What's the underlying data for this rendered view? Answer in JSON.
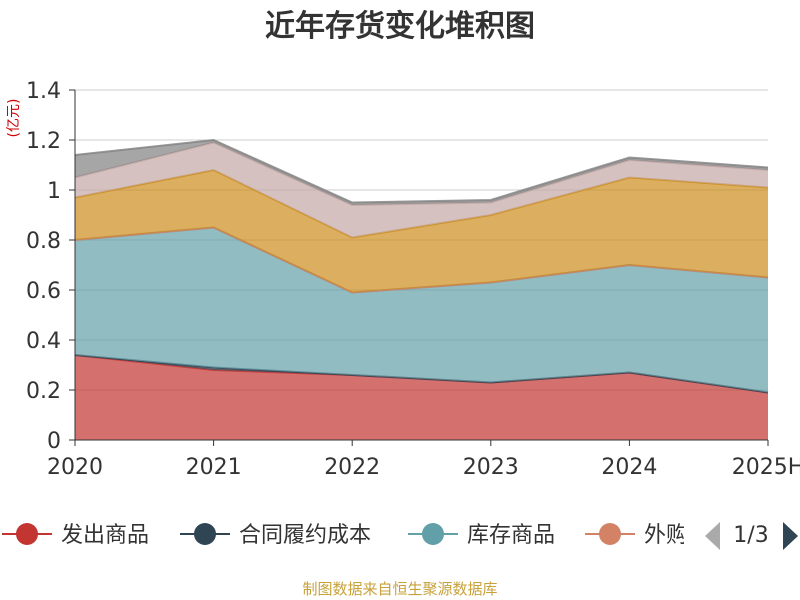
{
  "chart_data": {
    "type": "area",
    "title": "近年存货变化堆积图",
    "unit": "(亿元)",
    "categories": [
      "2020",
      "2021",
      "2022",
      "2023",
      "2024",
      "2025H"
    ],
    "y_ticks": [
      "0",
      "0.2",
      "0.4",
      "0.6",
      "0.8",
      "1",
      "1.2",
      "1.4"
    ],
    "ylim": [
      0,
      1.4
    ],
    "grid": true,
    "stacked": true,
    "series": [
      {
        "name": "发出商品",
        "color": "#c23531",
        "values": [
          0.34,
          0.28,
          0.26,
          0.23,
          0.27,
          0.19
        ]
      },
      {
        "name": "合同履约成本",
        "color": "#2f4554",
        "values": [
          0.0,
          0.01,
          0.0,
          0.0,
          0.0,
          0.0
        ]
      },
      {
        "name": "库存商品",
        "color": "#61a0a8",
        "values": [
          0.46,
          0.56,
          0.33,
          0.4,
          0.43,
          0.46
        ]
      },
      {
        "name": "外购",
        "color": "#d48265",
        "values": [
          0.0,
          0.0,
          0.0,
          0.0,
          0.0,
          0.0
        ]
      },
      {
        "name": "",
        "color": "#cc8b1c",
        "values": [
          0.17,
          0.23,
          0.22,
          0.27,
          0.35,
          0.36
        ]
      },
      {
        "name": "",
        "color": "#c3a8a5",
        "values": [
          0.08,
          0.11,
          0.13,
          0.05,
          0.07,
          0.07
        ]
      },
      {
        "name": "",
        "color": "#808080",
        "values": [
          0.09,
          0.01,
          0.01,
          0.01,
          0.01,
          0.01
        ]
      }
    ],
    "legend": {
      "position": "bottom",
      "visible_items": [
        "发出商品",
        "合同履约成本",
        "库存商品",
        "外购"
      ],
      "page": "1/3"
    },
    "source": "制图数据来自恒生聚源数据库"
  }
}
